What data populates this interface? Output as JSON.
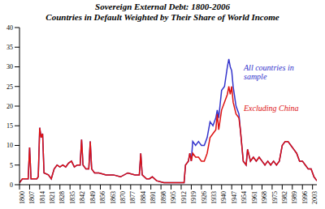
{
  "chart_data": {
    "type": "line",
    "title": "Sovereign External Debt: 1800-2006",
    "subtitle": "Countries in Default Weighted by Their Share of World Income",
    "x": [
      1800,
      1802,
      1806,
      1807,
      1808,
      1812,
      1813,
      1814,
      1815,
      1816,
      1817,
      1820,
      1822,
      1824,
      1826,
      1828,
      1830,
      1832,
      1834,
      1836,
      1838,
      1840,
      1842,
      1843,
      1844,
      1846,
      1848,
      1849,
      1850,
      1852,
      1855,
      1860,
      1865,
      1870,
      1875,
      1880,
      1883,
      1884,
      1885,
      1888,
      1890,
      1892,
      1895,
      1900,
      1905,
      1910,
      1914,
      1915,
      1917,
      1918,
      1919,
      1920,
      1922,
      1924,
      1926,
      1928,
      1930,
      1932,
      1934,
      1936,
      1937,
      1938,
      1940,
      1942,
      1944,
      1945,
      1946,
      1947,
      1948,
      1950,
      1952,
      1953,
      1955,
      1957,
      1958,
      1960,
      1962,
      1964,
      1966,
      1968,
      1970,
      1972,
      1974,
      1976,
      1978,
      1980,
      1982,
      1984,
      1986,
      1988,
      1990,
      1992,
      1994,
      1996,
      1998,
      2000,
      2002,
      2004,
      2006
    ],
    "series": [
      {
        "name": "All countries in sample",
        "color": "#3333cc",
        "values": [
          0.5,
          1.5,
          1.5,
          9.5,
          1.5,
          1.5,
          2,
          14.5,
          12,
          13,
          3,
          2.5,
          1.5,
          4,
          5,
          4.5,
          5,
          4.5,
          5.5,
          6,
          4.5,
          5,
          5,
          11.5,
          5,
          4,
          4,
          11,
          4,
          3,
          3,
          2.5,
          2.5,
          2,
          3,
          2.5,
          2.5,
          8,
          2.5,
          1.5,
          1.5,
          2,
          1,
          0.5,
          0.5,
          0.5,
          0.5,
          5,
          6,
          8,
          6,
          11,
          10,
          11,
          10,
          10,
          12,
          16,
          15,
          17,
          19,
          17,
          24,
          25,
          30,
          32,
          30,
          29,
          25,
          20,
          18,
          14,
          6,
          5,
          9,
          6,
          7,
          6,
          7,
          6,
          5,
          6,
          5,
          6,
          5,
          6,
          10,
          11,
          11,
          10,
          9,
          8,
          6,
          6,
          5,
          4,
          4,
          2,
          1
        ]
      },
      {
        "name": "Excluding China",
        "color": "#dd1111",
        "values": [
          0.5,
          1.5,
          1.5,
          9.5,
          1.5,
          1.5,
          2,
          14.5,
          12,
          13,
          3,
          2.5,
          1.5,
          4,
          5,
          4.5,
          5,
          4.5,
          5.5,
          6,
          4.5,
          5,
          5,
          11.5,
          5,
          4,
          4,
          11,
          4,
          3,
          3,
          2.5,
          2.5,
          2,
          3,
          2.5,
          2.5,
          8,
          2.5,
          1.5,
          1.5,
          2,
          1,
          0.5,
          0.5,
          0.5,
          0.5,
          5,
          6,
          8,
          6,
          8,
          7,
          7,
          6,
          6,
          8,
          12,
          13,
          14,
          18,
          14,
          19,
          21,
          23,
          25,
          23,
          25,
          21,
          18,
          17,
          14,
          6,
          5,
          9,
          6,
          7,
          6,
          7,
          6,
          5,
          6,
          5,
          6,
          5,
          6,
          10,
          11,
          11,
          10,
          9,
          8,
          6,
          6,
          5,
          4,
          4,
          2,
          1
        ]
      }
    ],
    "xlim": [
      1800,
      2006
    ],
    "xticks": [
      1800,
      1807,
      1814,
      1821,
      1828,
      1835,
      1842,
      1849,
      1856,
      1863,
      1870,
      1877,
      1884,
      1891,
      1898,
      1905,
      1912,
      1919,
      1926,
      1933,
      1940,
      1947,
      1954,
      1961,
      1968,
      1975,
      1982,
      1989,
      1996,
      2003
    ],
    "ylim": [
      0,
      40
    ],
    "yticks": [
      0,
      5,
      10,
      15,
      20,
      25,
      30,
      35,
      40
    ],
    "grid": false
  }
}
